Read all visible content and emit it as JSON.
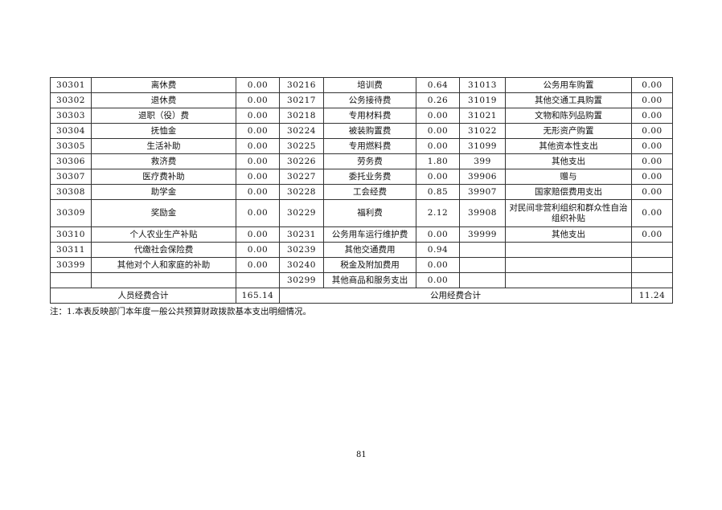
{
  "rows": [
    {
      "c1": "30301",
      "n1": "离休费",
      "v1": "0.00",
      "c2": "30216",
      "n2": "培训费",
      "v2": "0.64",
      "c3": "31013",
      "n3": "公务用车购置",
      "v3": "0.00"
    },
    {
      "c1": "30302",
      "n1": "退休费",
      "v1": "0.00",
      "c2": "30217",
      "n2": "公务接待费",
      "v2": "0.26",
      "c3": "31019",
      "n3": "其他交通工具购置",
      "v3": "0.00"
    },
    {
      "c1": "30303",
      "n1": "退职（役）费",
      "v1": "0.00",
      "c2": "30218",
      "n2": "专用材料费",
      "v2": "0.00",
      "c3": "31021",
      "n3": "文物和陈列品购置",
      "v3": "0.00"
    },
    {
      "c1": "30304",
      "n1": "抚恤金",
      "v1": "0.00",
      "c2": "30224",
      "n2": "被装购置费",
      "v2": "0.00",
      "c3": "31022",
      "n3": "无形资产购置",
      "v3": "0.00"
    },
    {
      "c1": "30305",
      "n1": "生活补助",
      "v1": "0.00",
      "c2": "30225",
      "n2": "专用燃料费",
      "v2": "0.00",
      "c3": "31099",
      "n3": "其他资本性支出",
      "v3": "0.00"
    },
    {
      "c1": "30306",
      "n1": "救济费",
      "v1": "0.00",
      "c2": "30226",
      "n2": "劳务费",
      "v2": "1.80",
      "c3": "399",
      "n3": "其他支出",
      "v3": "0.00"
    },
    {
      "c1": "30307",
      "n1": "医疗费补助",
      "v1": "0.00",
      "c2": "30227",
      "n2": "委托业务费",
      "v2": "0.00",
      "c3": "39906",
      "n3": "赠与",
      "v3": "0.00"
    },
    {
      "c1": "30308",
      "n1": "助学金",
      "v1": "0.00",
      "c2": "30228",
      "n2": "工会经费",
      "v2": "0.85",
      "c3": "39907",
      "n3": "国家赔偿费用支出",
      "v3": "0.00"
    },
    {
      "c1": "30309",
      "n1": "奖励金",
      "v1": "0.00",
      "c2": "30229",
      "n2": "福利费",
      "v2": "2.12",
      "c3": "39908",
      "n3": "对民间非营利组织和群众性自治组织补贴",
      "v3": "0.00"
    },
    {
      "c1": "30310",
      "n1": "个人农业生产补贴",
      "v1": "0.00",
      "c2": "30231",
      "n2": "公务用车运行维护费",
      "v2": "0.00",
      "c3": "39999",
      "n3": "其他支出",
      "v3": "0.00"
    },
    {
      "c1": "30311",
      "n1": "代缴社会保险费",
      "v1": "0.00",
      "c2": "30239",
      "n2": "其他交通费用",
      "v2": "0.94",
      "c3": "",
      "n3": "",
      "v3": ""
    },
    {
      "c1": "30399",
      "n1": "其他对个人和家庭的补助",
      "v1": "0.00",
      "c2": "30240",
      "n2": "税金及附加费用",
      "v2": "0.00",
      "c3": "",
      "n3": "",
      "v3": ""
    },
    {
      "c1": "",
      "n1": "",
      "v1": "",
      "c2": "30299",
      "n2": "其他商品和服务支出",
      "v2": "0.00",
      "c3": "",
      "n3": "",
      "v3": ""
    }
  ],
  "totals": {
    "personnel_label": "人员经费合计",
    "personnel_value": "165.14",
    "public_label": "公用经费合计",
    "public_value": "11.24"
  },
  "note": "注：1.本表反映部门本年度一般公共预算财政拨款基本支出明细情况。",
  "page_number": "81"
}
